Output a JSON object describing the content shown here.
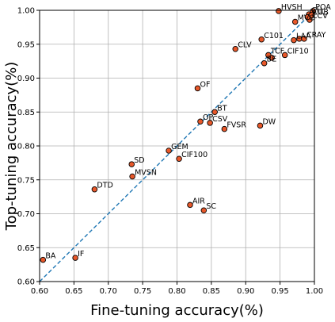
{
  "chart_data": {
    "type": "scatter",
    "title": "",
    "xlabel": "Fine-tuning accuracy(%)",
    "ylabel": "Top-tuning accuracy(%)",
    "xlim": [
      0.6,
      1.0
    ],
    "ylim": [
      0.6,
      1.0
    ],
    "xticks": [
      "0.60",
      "0.65",
      "0.70",
      "0.75",
      "0.80",
      "0.85",
      "0.90",
      "0.95",
      "1.00"
    ],
    "yticks": [
      "0.60",
      "0.65",
      "0.70",
      "0.75",
      "0.80",
      "0.85",
      "0.90",
      "0.95",
      "1.00"
    ],
    "grid": true,
    "reference_line": {
      "style": "dashed",
      "from": [
        0.6,
        0.6
      ],
      "to": [
        1.0,
        1.0
      ],
      "color": "#1f77b4"
    },
    "marker_color": "#e8582a",
    "marker_edge": "#000000",
    "points": [
      {
        "label": "HVSH",
        "x": 0.948,
        "y": 0.999
      },
      {
        "label": "POA",
        "x": 0.998,
        "y": 0.999
      },
      {
        "label": "CH",
        "x": 0.992,
        "y": 0.994
      },
      {
        "label": "CUB",
        "x": 0.994,
        "y": 0.991
      },
      {
        "label": "CCV",
        "x": 0.993,
        "y": 0.986
      },
      {
        "label": "MVC",
        "x": 0.972,
        "y": 0.983
      },
      {
        "label": "",
        "x": 0.99,
        "y": 0.99
      },
      {
        "label": "",
        "x": 0.996,
        "y": 0.993
      },
      {
        "label": "C101",
        "x": 0.923,
        "y": 0.957
      },
      {
        "label": "LAA",
        "x": 0.97,
        "y": 0.956
      },
      {
        "label": "",
        "x": 0.978,
        "y": 0.958
      },
      {
        "label": "CRAY",
        "x": 0.985,
        "y": 0.958
      },
      {
        "label": "CLV",
        "x": 0.885,
        "y": 0.943
      },
      {
        "label": "TCF",
        "x": 0.933,
        "y": 0.934
      },
      {
        "label": "CIF10",
        "x": 0.957,
        "y": 0.934
      },
      {
        "label": "",
        "x": 0.938,
        "y": 0.93
      },
      {
        "label": "BE",
        "x": 0.927,
        "y": 0.922
      },
      {
        "label": "OF",
        "x": 0.83,
        "y": 0.885
      },
      {
        "label": "BT",
        "x": 0.855,
        "y": 0.85
      },
      {
        "label": "OP",
        "x": 0.834,
        "y": 0.836
      },
      {
        "label": "CSV",
        "x": 0.848,
        "y": 0.834
      },
      {
        "label": "FVSR",
        "x": 0.869,
        "y": 0.825
      },
      {
        "label": "DW",
        "x": 0.921,
        "y": 0.83
      },
      {
        "label": "GEM",
        "x": 0.788,
        "y": 0.793
      },
      {
        "label": "CIF100",
        "x": 0.803,
        "y": 0.781
      },
      {
        "label": "SD",
        "x": 0.734,
        "y": 0.773
      },
      {
        "label": "MVSN",
        "x": 0.735,
        "y": 0.755
      },
      {
        "label": "DTD",
        "x": 0.68,
        "y": 0.736
      },
      {
        "label": "AIR",
        "x": 0.819,
        "y": 0.713
      },
      {
        "label": "SC",
        "x": 0.839,
        "y": 0.705
      },
      {
        "label": "BA",
        "x": 0.605,
        "y": 0.632
      },
      {
        "label": "IF",
        "x": 0.652,
        "y": 0.635
      }
    ]
  }
}
